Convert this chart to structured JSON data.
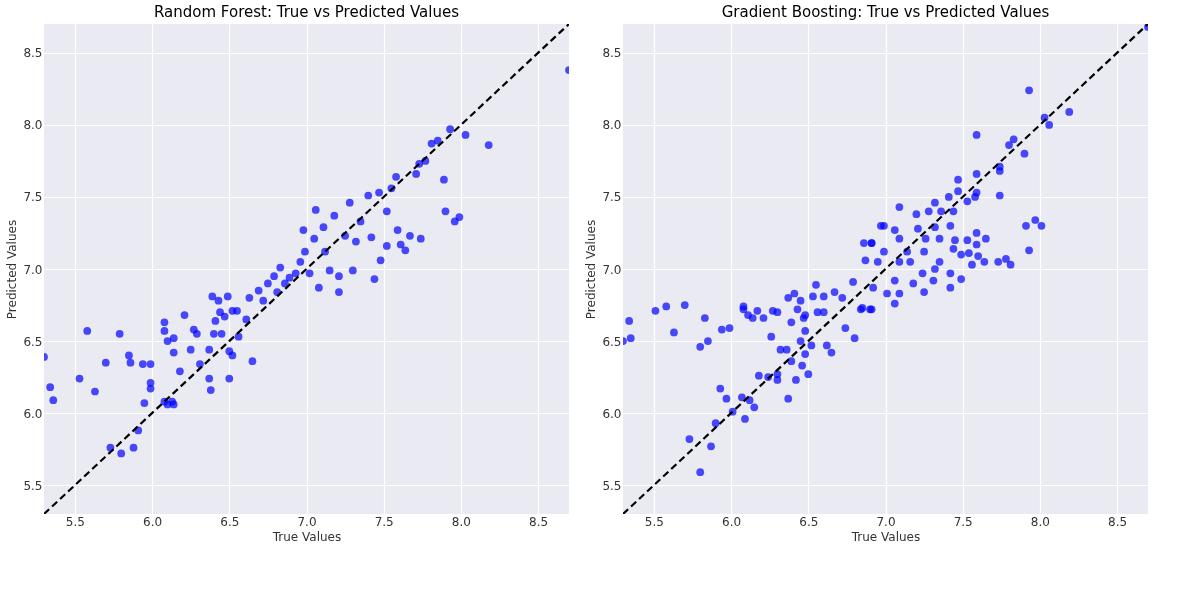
{
  "chart_data": [
    {
      "type": "scatter",
      "title": "Random Forest: True vs Predicted Values",
      "xlabel": "True Values",
      "ylabel": "Predicted Values",
      "xlim": [
        5.3,
        8.7
      ],
      "ylim": [
        5.3,
        8.7
      ],
      "xticks": [
        5.5,
        {
          "value": 6,
          "label": "6.0"
        },
        6.5,
        {
          "value": 7,
          "label": "7.0"
        },
        7.5,
        {
          "value": 8,
          "label": "8.0"
        },
        8.5
      ],
      "yticks": [
        5.5,
        {
          "value": 6,
          "label": "6.0"
        },
        6.5,
        {
          "value": 7,
          "label": "7.0"
        },
        7.5,
        {
          "value": 8,
          "label": "8.0"
        },
        8.5
      ],
      "grid": true,
      "series": [
        {
          "marker": "circle",
          "color": "#0000ff",
          "x": [
            5.3,
            5.34,
            5.36,
            5.53,
            5.58,
            5.63,
            5.7,
            5.79,
            5.86,
            5.85,
            5.73,
            5.8,
            5.88,
            5.91,
            5.95,
            5.99,
            5.99,
            5.94,
            5.99,
            6.08,
            6.1,
            6.13,
            6.14,
            6.08,
            6.08,
            6.1,
            6.14,
            6.14,
            6.21,
            6.27,
            6.29,
            6.25,
            6.18,
            6.31,
            6.37,
            6.37,
            6.38,
            6.4,
            6.45,
            6.41,
            6.44,
            6.47,
            6.5,
            6.5,
            6.52,
            6.56,
            6.61,
            6.65,
            6.55,
            6.63,
            6.43,
            6.39,
            6.49,
            6.52,
            6.69,
            6.72,
            6.75,
            6.79,
            6.81,
            6.83,
            6.86,
            6.89,
            6.93,
            6.96,
            6.98,
            6.99,
            7.02,
            7.05,
            7.06,
            7.08,
            7.11,
            7.12,
            7.15,
            7.18,
            7.21,
            7.21,
            7.25,
            7.28,
            7.3,
            7.32,
            7.35,
            7.4,
            7.42,
            7.44,
            7.47,
            7.48,
            7.52,
            7.52,
            7.55,
            7.58,
            7.59,
            7.61,
            7.64,
            7.67,
            7.71,
            7.73,
            7.74,
            7.77,
            7.81,
            7.85,
            7.89,
            7.9,
            7.93,
            7.96,
            7.99,
            8.03,
            8.18,
            8.7
          ],
          "values": [
            6.39,
            6.18,
            6.09,
            6.24,
            6.57,
            6.15,
            6.35,
            6.55,
            6.35,
            6.4,
            5.76,
            5.72,
            5.76,
            5.88,
            6.07,
            6.21,
            6.17,
            6.34,
            6.34,
            6.08,
            6.06,
            6.08,
            6.06,
            6.63,
            6.57,
            6.5,
            6.52,
            6.42,
            6.68,
            6.58,
            6.55,
            6.44,
            6.29,
            6.34,
            6.44,
            6.24,
            6.16,
            6.55,
            6.55,
            6.64,
            6.7,
            6.67,
            6.43,
            6.24,
            6.4,
            6.53,
            6.65,
            6.36,
            6.71,
            6.8,
            6.78,
            6.81,
            6.81,
            6.71,
            6.85,
            6.78,
            6.9,
            6.95,
            6.84,
            7.01,
            6.9,
            6.94,
            6.97,
            7.05,
            7.27,
            7.12,
            6.97,
            7.21,
            7.41,
            6.87,
            7.29,
            7.12,
            6.99,
            7.37,
            6.84,
            6.95,
            7.23,
            7.46,
            6.99,
            7.19,
            7.33,
            7.51,
            7.22,
            6.93,
            7.53,
            7.06,
            7.16,
            7.4,
            7.56,
            7.64,
            7.27,
            7.17,
            7.13,
            7.23,
            7.66,
            7.73,
            7.21,
            7.75,
            7.87,
            7.89,
            7.62,
            7.4,
            7.97,
            7.33,
            7.36,
            7.93,
            7.86,
            8.38
          ]
        },
        {
          "type": "line",
          "color": "#000000",
          "line_style": "dashed",
          "x": [
            5.3,
            8.7
          ],
          "values": [
            5.3,
            8.7
          ]
        }
      ]
    },
    {
      "type": "scatter",
      "title": "Gradient Boosting: True vs Predicted Values",
      "xlabel": "True Values",
      "ylabel": "Predicted Values",
      "xlim": [
        5.3,
        8.7
      ],
      "ylim": [
        5.3,
        8.7
      ],
      "xticks": [
        5.5,
        {
          "value": 6,
          "label": "6.0"
        },
        6.5,
        {
          "value": 7,
          "label": "7.0"
        },
        7.5,
        {
          "value": 8,
          "label": "8.0"
        },
        8.5
      ],
      "yticks": [
        5.5,
        {
          "value": 6,
          "label": "6.0"
        },
        6.5,
        {
          "value": 7,
          "label": "7.0"
        },
        7.5,
        {
          "value": 8,
          "label": "8.0"
        },
        8.5
      ],
      "grid": true,
      "series": [
        {
          "marker": "circle",
          "color": "#0000ff",
          "x": [
            5.3,
            5.34,
            5.35,
            5.51,
            5.58,
            5.7,
            5.63,
            5.83,
            5.8,
            5.85,
            5.94,
            5.99,
            6.08,
            6.08,
            6.11,
            6.14,
            6.17,
            6.21,
            6.27,
            6.3,
            6.26,
            6.39,
            6.37,
            6.41,
            6.45,
            6.43,
            6.47,
            6.48,
            6.53,
            6.55,
            6.6,
            6.6,
            6.56,
            6.67,
            6.62,
            6.65,
            6.45,
            6.48,
            6.52,
            6.48,
            6.32,
            6.36,
            6.39,
            6.46,
            6.5,
            6.42,
            6.3,
            6.3,
            6.24,
            6.18,
            6.37,
            5.93,
            5.97,
            6.07,
            6.12,
            6.15,
            6.09,
            6.01,
            5.9,
            5.73,
            5.87,
            5.8,
            6.8,
            6.74,
            6.84,
            6.79,
            6.9,
            6.86,
            6.91,
            6.97,
            6.72,
            7.93,
            8.03,
            8.06,
            8.19,
            7.59,
            7.83,
            7.8,
            7.9,
            7.74,
            7.74,
            7.59,
            7.47,
            7.74,
            7.47,
            7.59,
            7.58,
            7.41,
            7.53,
            7.32,
            7.44,
            7.36,
            7.28,
            7.2,
            7.09,
            6.99,
            7.06,
            7.21,
            7.32,
            7.42,
            7.09,
            6.91,
            7.26,
            7.35,
            7.45,
            7.53,
            7.59,
            7.65,
            7.59,
            7.44,
            7.49,
            7.54,
            7.6,
            7.25,
            7.14,
            6.99,
            6.87,
            6.95,
            7.09,
            7.16,
            7.35,
            7.56,
            7.64,
            7.73,
            7.78,
            7.81,
            7.91,
            7.97,
            8.01,
            7.93,
            7.32,
            7.42,
            7.49,
            7.42,
            7.24,
            7.31,
            7.06,
            7.18,
            7.25,
            7.09,
            7.01,
            6.92,
            7.06,
            6.91,
            6.85,
            8.7
          ],
          "values": [
            6.5,
            6.64,
            6.52,
            6.71,
            6.74,
            6.75,
            6.56,
            6.66,
            6.46,
            6.5,
            6.58,
            6.59,
            6.74,
            6.72,
            6.68,
            6.66,
            6.71,
            6.66,
            6.71,
            6.7,
            6.53,
            6.63,
            6.8,
            6.83,
            6.78,
            6.72,
            6.66,
            6.68,
            6.81,
            6.89,
            6.81,
            6.7,
            6.7,
            6.84,
            6.47,
            6.42,
            6.5,
            6.57,
            6.47,
            6.41,
            6.44,
            6.44,
            6.36,
            6.33,
            6.27,
            6.23,
            6.27,
            6.23,
            6.25,
            6.26,
            6.1,
            6.17,
            6.1,
            6.11,
            6.09,
            6.04,
            5.96,
            6.01,
            5.93,
            5.82,
            5.77,
            5.59,
            6.52,
            6.59,
            6.72,
            6.91,
            6.72,
            7.18,
            7.18,
            7.3,
            6.8,
            8.24,
            8.05,
            8.0,
            8.09,
            7.93,
            7.9,
            7.86,
            7.8,
            7.71,
            7.68,
            7.66,
            7.62,
            7.51,
            7.54,
            7.53,
            7.5,
            7.5,
            7.47,
            7.46,
            7.4,
            7.4,
            7.4,
            7.38,
            7.43,
            7.3,
            7.27,
            7.28,
            7.29,
            7.3,
            7.21,
            7.18,
            7.21,
            7.21,
            7.2,
            7.2,
            7.25,
            7.21,
            7.17,
            7.14,
            7.1,
            7.11,
            7.09,
            7.12,
            7.12,
            7.12,
            7.06,
            7.05,
            7.05,
            7.05,
            7.05,
            7.03,
            7.05,
            7.05,
            7.07,
            7.03,
            7.3,
            7.34,
            7.3,
            7.13,
            7.0,
            6.97,
            6.93,
            6.87,
            6.97,
            6.92,
            6.92,
            6.9,
            6.84,
            6.83,
            6.83,
            6.87,
            6.76,
            6.72,
            6.73,
            8.68
          ]
        },
        {
          "type": "line",
          "color": "#000000",
          "line_style": "dashed",
          "x": [
            5.3,
            8.7
          ],
          "values": [
            5.3,
            8.7
          ]
        }
      ]
    }
  ]
}
